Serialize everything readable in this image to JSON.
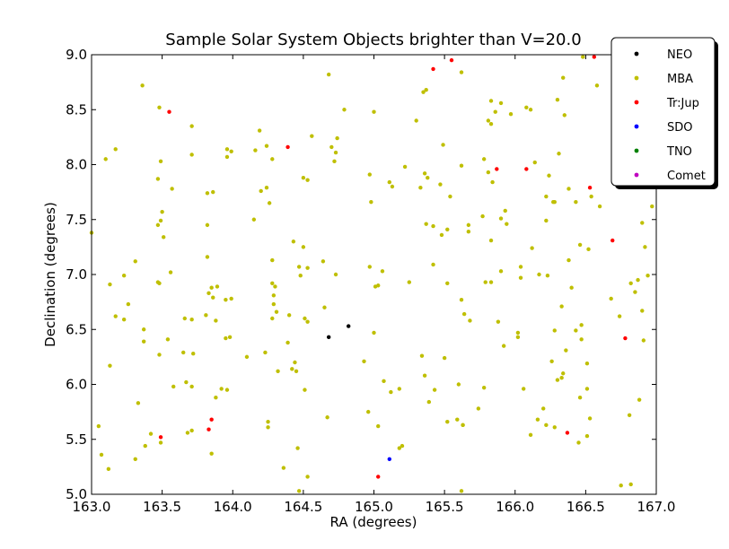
{
  "chart_data": {
    "type": "scatter",
    "title": "Sample Solar System Objects brighter than V=20.0",
    "xlabel": "RA (degrees)",
    "ylabel": "Declination (degrees)",
    "xlim": [
      163.0,
      167.0
    ],
    "ylim": [
      5.0,
      9.0
    ],
    "x_ticks": [
      163.0,
      163.5,
      164.0,
      164.5,
      165.0,
      165.5,
      166.0,
      166.5,
      167.0
    ],
    "y_ticks": [
      5.0,
      5.5,
      6.0,
      6.5,
      7.0,
      7.5,
      8.0,
      8.5,
      9.0
    ],
    "x_tick_labels": [
      "163.0",
      "163.5",
      "164.0",
      "164.5",
      "165.0",
      "165.5",
      "166.0",
      "166.5",
      "167.0"
    ],
    "y_tick_labels": [
      "5.0",
      "5.5",
      "6.0",
      "6.5",
      "7.0",
      "7.5",
      "8.0",
      "8.5",
      "9.0"
    ],
    "grid": false,
    "legend_position": "top-right, outside axes",
    "series": [
      {
        "name": "NEO",
        "color": "#000000",
        "points": [
          [
            164.68,
            6.43
          ],
          [
            164.82,
            6.53
          ]
        ]
      },
      {
        "name": "MBA",
        "color": "#bfbf00",
        "points": [
          [
            163.1,
            8.05
          ],
          [
            163.17,
            8.14
          ],
          [
            163.36,
            8.72
          ],
          [
            163.48,
            8.52
          ],
          [
            163.49,
            8.03
          ],
          [
            163.47,
            7.87
          ],
          [
            163.5,
            7.57
          ],
          [
            163.49,
            7.49
          ],
          [
            163.47,
            7.45
          ],
          [
            163.51,
            7.34
          ],
          [
            163.57,
            7.78
          ],
          [
            163.71,
            8.35
          ],
          [
            163.71,
            8.09
          ],
          [
            163.82,
            7.74
          ],
          [
            163.86,
            7.75
          ],
          [
            163.82,
            7.45
          ],
          [
            163.82,
            7.16
          ],
          [
            163.85,
            6.88
          ],
          [
            163.89,
            6.89
          ],
          [
            163.83,
            6.83
          ],
          [
            163.86,
            6.79
          ],
          [
            163.95,
            6.77
          ],
          [
            163.99,
            6.78
          ],
          [
            163.81,
            6.63
          ],
          [
            163.88,
            6.58
          ],
          [
            163.95,
            6.42
          ],
          [
            163.98,
            6.43
          ],
          [
            163.96,
            8.14
          ],
          [
            163.96,
            8.07
          ],
          [
            163.99,
            8.12
          ],
          [
            164.16,
            8.13
          ],
          [
            164.19,
            8.31
          ],
          [
            164.24,
            8.17
          ],
          [
            164.28,
            8.05
          ],
          [
            164.15,
            7.5
          ],
          [
            164.2,
            7.76
          ],
          [
            164.24,
            7.79
          ],
          [
            164.26,
            7.65
          ],
          [
            164.28,
            7.13
          ],
          [
            164.28,
            6.92
          ],
          [
            164.3,
            6.89
          ],
          [
            164.29,
            6.81
          ],
          [
            164.29,
            6.73
          ],
          [
            164.28,
            6.6
          ],
          [
            164.31,
            6.66
          ],
          [
            164.1,
            6.25
          ],
          [
            164.23,
            6.29
          ],
          [
            164.32,
            6.12
          ],
          [
            164.42,
            6.14
          ],
          [
            164.44,
            6.2
          ],
          [
            164.45,
            6.12
          ],
          [
            164.39,
            6.38
          ],
          [
            164.4,
            6.63
          ],
          [
            164.48,
            6.99
          ],
          [
            164.47,
            7.07
          ],
          [
            164.53,
            7.06
          ],
          [
            164.43,
            7.3
          ],
          [
            164.5,
            7.25
          ],
          [
            164.5,
            7.88
          ],
          [
            164.53,
            7.86
          ],
          [
            164.56,
            8.26
          ],
          [
            164.68,
            8.82
          ],
          [
            164.7,
            8.16
          ],
          [
            164.72,
            8.03
          ],
          [
            164.73,
            8.11
          ],
          [
            164.74,
            8.24
          ],
          [
            164.79,
            8.5
          ],
          [
            164.64,
            7.12
          ],
          [
            164.73,
            7.0
          ],
          [
            164.51,
            6.6
          ],
          [
            164.53,
            6.57
          ],
          [
            164.65,
            6.7
          ],
          [
            164.51,
            5.95
          ],
          [
            164.25,
            5.66
          ],
          [
            164.25,
            5.61
          ],
          [
            164.36,
            5.24
          ],
          [
            164.46,
            5.42
          ],
          [
            164.47,
            5.03
          ],
          [
            164.53,
            5.16
          ],
          [
            164.67,
            5.7
          ],
          [
            163.05,
            5.62
          ],
          [
            163.07,
            5.36
          ],
          [
            163.12,
            5.23
          ],
          [
            163.13,
            6.17
          ],
          [
            163.17,
            6.62
          ],
          [
            163.23,
            6.59
          ],
          [
            163.33,
            5.83
          ],
          [
            163.31,
            5.32
          ],
          [
            163.38,
            5.44
          ],
          [
            163.42,
            5.55
          ],
          [
            163.49,
            5.47
          ],
          [
            163.37,
            6.5
          ],
          [
            163.37,
            6.39
          ],
          [
            163.48,
            6.27
          ],
          [
            163.54,
            6.41
          ],
          [
            163.58,
            5.98
          ],
          [
            163.65,
            6.29
          ],
          [
            163.66,
            6.6
          ],
          [
            163.67,
            6.02
          ],
          [
            163.71,
            6.59
          ],
          [
            163.71,
            5.98
          ],
          [
            163.68,
            5.56
          ],
          [
            163.71,
            5.58
          ],
          [
            163.85,
            5.37
          ],
          [
            163.88,
            5.88
          ],
          [
            163.92,
            5.96
          ],
          [
            163.96,
            5.95
          ],
          [
            163.13,
            6.91
          ],
          [
            163.23,
            6.99
          ],
          [
            163.31,
            7.12
          ],
          [
            163.47,
            6.93
          ],
          [
            163.48,
            6.92
          ],
          [
            163.56,
            7.02
          ],
          [
            165.0,
            8.48
          ],
          [
            165.22,
            7.98
          ],
          [
            165.13,
            7.8
          ],
          [
            165.11,
            7.84
          ],
          [
            164.97,
            7.91
          ],
          [
            164.98,
            7.66
          ],
          [
            165.3,
            8.4
          ],
          [
            165.35,
            8.66
          ],
          [
            165.37,
            8.68
          ],
          [
            165.49,
            8.18
          ],
          [
            165.62,
            8.84
          ],
          [
            165.33,
            7.79
          ],
          [
            165.36,
            7.92
          ],
          [
            165.38,
            7.88
          ],
          [
            165.47,
            7.82
          ],
          [
            165.54,
            7.71
          ],
          [
            165.42,
            7.44
          ],
          [
            165.37,
            7.46
          ],
          [
            165.48,
            7.36
          ],
          [
            165.52,
            7.41
          ],
          [
            165.42,
            7.09
          ],
          [
            165.52,
            6.92
          ],
          [
            165.25,
            6.93
          ],
          [
            165.06,
            7.03
          ],
          [
            164.97,
            7.07
          ],
          [
            165.01,
            6.89
          ],
          [
            165.03,
            6.9
          ],
          [
            165.0,
            6.47
          ],
          [
            165.34,
            6.26
          ],
          [
            165.36,
            6.08
          ],
          [
            165.39,
            5.84
          ],
          [
            165.43,
            5.95
          ],
          [
            165.5,
            6.24
          ],
          [
            165.6,
            6.0
          ],
          [
            165.62,
            6.77
          ],
          [
            165.64,
            6.64
          ],
          [
            165.68,
            6.58
          ],
          [
            165.62,
            7.99
          ],
          [
            165.67,
            7.39
          ],
          [
            165.67,
            7.45
          ],
          [
            165.77,
            7.53
          ],
          [
            165.79,
            6.93
          ],
          [
            165.83,
            6.93
          ],
          [
            165.78,
            8.05
          ],
          [
            165.81,
            8.4
          ],
          [
            165.83,
            8.37
          ],
          [
            165.86,
            8.48
          ],
          [
            165.83,
            8.58
          ],
          [
            165.9,
            8.56
          ],
          [
            165.97,
            8.46
          ],
          [
            165.84,
            7.84
          ],
          [
            165.81,
            7.93
          ],
          [
            165.93,
            7.58
          ],
          [
            165.9,
            7.51
          ],
          [
            165.94,
            7.46
          ],
          [
            165.83,
            7.31
          ],
          [
            165.9,
            7.03
          ],
          [
            165.88,
            6.57
          ],
          [
            165.92,
            6.35
          ],
          [
            166.02,
            6.47
          ],
          [
            166.02,
            6.43
          ],
          [
            166.04,
            6.97
          ],
          [
            166.04,
            7.07
          ],
          [
            166.12,
            7.24
          ],
          [
            166.17,
            7.0
          ],
          [
            166.08,
            8.52
          ],
          [
            166.11,
            8.5
          ],
          [
            166.14,
            8.02
          ],
          [
            166.24,
            7.9
          ],
          [
            166.22,
            7.71
          ],
          [
            166.22,
            7.49
          ],
          [
            166.28,
            7.66
          ],
          [
            166.27,
            7.66
          ],
          [
            166.31,
            8.1
          ],
          [
            166.34,
            8.79
          ],
          [
            166.3,
            8.59
          ],
          [
            166.35,
            8.45
          ],
          [
            166.38,
            7.78
          ],
          [
            166.43,
            7.66
          ],
          [
            166.54,
            7.71
          ],
          [
            166.46,
            7.27
          ],
          [
            166.52,
            7.23
          ],
          [
            166.38,
            7.13
          ],
          [
            166.4,
            6.88
          ],
          [
            166.47,
            6.54
          ],
          [
            166.33,
            6.71
          ],
          [
            166.23,
            6.99
          ],
          [
            166.28,
            6.49
          ],
          [
            166.43,
            6.49
          ],
          [
            166.47,
            6.41
          ],
          [
            166.36,
            6.31
          ],
          [
            166.26,
            6.21
          ],
          [
            166.33,
            6.06
          ],
          [
            166.34,
            6.1
          ],
          [
            166.3,
            6.04
          ],
          [
            166.51,
            6.19
          ],
          [
            166.51,
            5.96
          ],
          [
            166.46,
            5.88
          ],
          [
            166.51,
            5.53
          ],
          [
            166.53,
            5.69
          ],
          [
            166.6,
            7.62
          ],
          [
            166.58,
            8.72
          ],
          [
            166.48,
            8.98
          ],
          [
            166.68,
            6.78
          ],
          [
            166.74,
            6.62
          ],
          [
            166.82,
            6.92
          ],
          [
            166.85,
            6.84
          ],
          [
            166.87,
            6.95
          ],
          [
            166.9,
            6.67
          ],
          [
            166.94,
            6.99
          ],
          [
            166.97,
            7.62
          ],
          [
            166.9,
            7.47
          ],
          [
            166.92,
            7.25
          ],
          [
            166.91,
            6.4
          ],
          [
            166.88,
            5.86
          ],
          [
            166.81,
            5.72
          ],
          [
            166.75,
            5.08
          ],
          [
            166.82,
            5.09
          ],
          [
            166.45,
            5.47
          ],
          [
            166.22,
            5.63
          ],
          [
            166.16,
            5.68
          ],
          [
            166.11,
            5.54
          ],
          [
            166.06,
            5.96
          ],
          [
            166.28,
            5.61
          ],
          [
            165.52,
            5.66
          ],
          [
            165.59,
            5.68
          ],
          [
            165.63,
            5.63
          ],
          [
            165.78,
            5.97
          ],
          [
            165.62,
            5.03
          ],
          [
            165.74,
            5.78
          ],
          [
            165.63,
            5.63
          ],
          [
            164.93,
            6.21
          ],
          [
            164.96,
            5.75
          ],
          [
            165.03,
            5.62
          ],
          [
            165.07,
            6.03
          ],
          [
            165.12,
            5.93
          ],
          [
            165.18,
            5.42
          ],
          [
            165.2,
            5.44
          ],
          [
            165.18,
            5.96
          ],
          [
            163.72,
            6.28
          ],
          [
            163.26,
            6.73
          ],
          [
            163.0,
            7.38
          ],
          [
            166.2,
            5.78
          ]
        ]
      },
      {
        "name": "Tr:Jup",
        "color": "#ff0000",
        "points": [
          [
            163.55,
            8.48
          ],
          [
            164.39,
            8.16
          ],
          [
            165.42,
            8.87
          ],
          [
            165.55,
            8.95
          ],
          [
            165.87,
            7.96
          ],
          [
            166.08,
            7.96
          ],
          [
            166.53,
            7.79
          ],
          [
            166.56,
            8.98
          ],
          [
            166.69,
            7.31
          ],
          [
            166.78,
            6.42
          ],
          [
            166.37,
            5.56
          ],
          [
            165.03,
            5.16
          ],
          [
            163.83,
            5.59
          ],
          [
            163.85,
            5.68
          ],
          [
            163.49,
            5.52
          ]
        ]
      },
      {
        "name": "SDO",
        "color": "#0000ff",
        "points": [
          [
            165.11,
            5.32
          ]
        ]
      },
      {
        "name": "TNO",
        "color": "#008000",
        "points": []
      },
      {
        "name": "Comet",
        "color": "#bf00bf",
        "points": []
      }
    ]
  }
}
